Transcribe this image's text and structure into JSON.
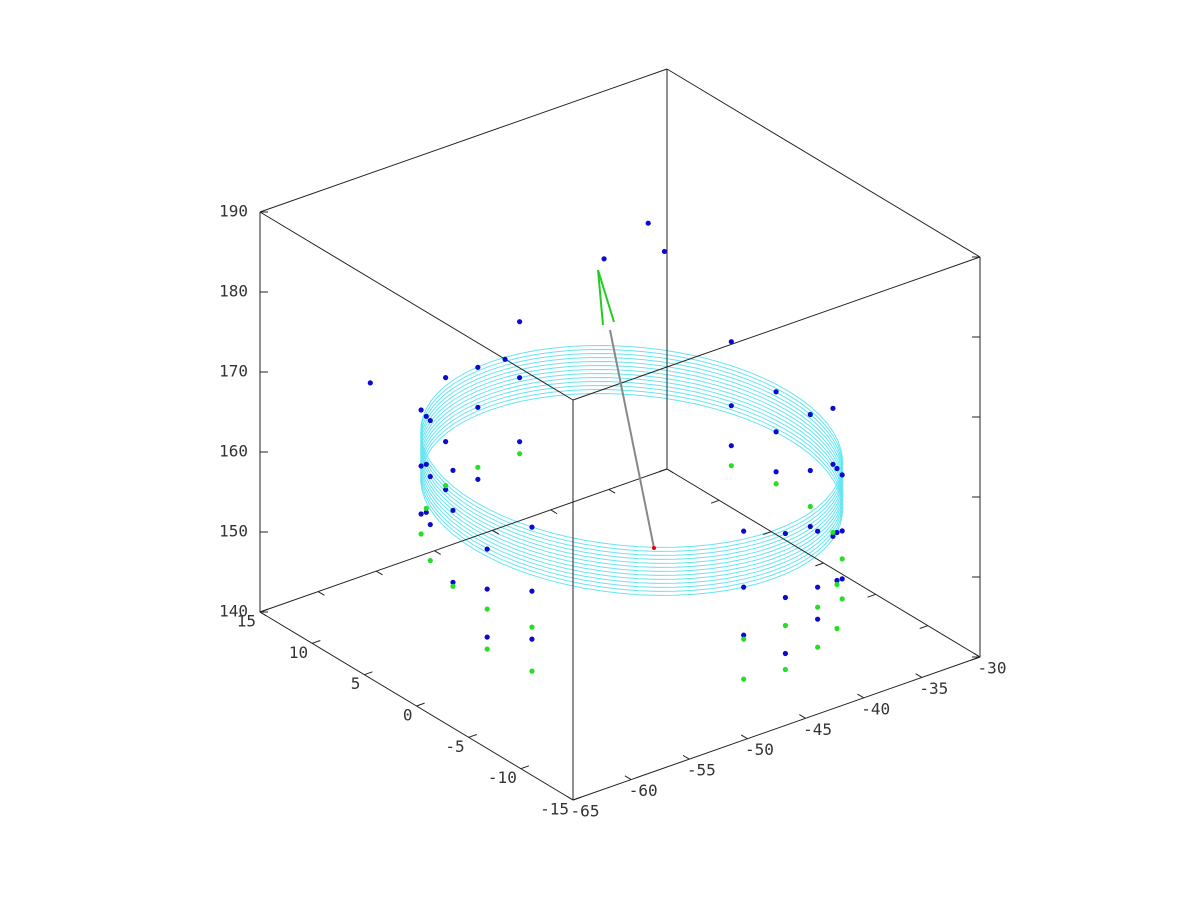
{
  "chart_data": {
    "type": "scatter3d",
    "xlim": [
      -65,
      -30
    ],
    "xticks": [
      -65,
      -60,
      -55,
      -50,
      -45,
      -40,
      -35,
      -30
    ],
    "ylim": [
      -15,
      15
    ],
    "yticks": [
      -15,
      -10,
      -5,
      0,
      5,
      10,
      15
    ],
    "zlim": [
      140,
      190
    ],
    "zticks": [
      140,
      150,
      160,
      170,
      180,
      190
    ],
    "cylinder": {
      "color": "#66e4f2",
      "center": [
        -46.5,
        0
      ],
      "radius": 13.5,
      "z": [
        157,
        157.5,
        158,
        158.5,
        159,
        159.5,
        160,
        160.5,
        161,
        161.5,
        162,
        162.5,
        163
      ]
    },
    "series": [
      {
        "color": "#0a0ad0",
        "x": [
          -44.2,
          -47.7,
          -51.1,
          -54.2,
          -56.8,
          -58.7,
          -59.8,
          -60.0,
          -59.2,
          -48.8,
          -45.3,
          -41.9,
          -38.8,
          -36.2,
          -34.3,
          -33.2,
          -33.0,
          -33.8,
          -44.2,
          -47.7,
          -51.1,
          -54.2,
          -56.8,
          -58.7,
          -59.8,
          -60.0,
          -59.2,
          -48.8,
          -45.3,
          -41.9,
          -38.8,
          -36.2,
          -34.3,
          -33.2,
          -33.0,
          -33.8,
          -44.2,
          -47.7,
          -51.1,
          -54.2,
          -56.8,
          -58.7,
          -59.8,
          -60.0,
          -59.2,
          -48.8,
          -45.3,
          -41.9,
          -38.8,
          -36.2,
          -34.3,
          -33.2,
          -33.0,
          -33.8,
          -37,
          -36.5,
          -39,
          -60,
          -52
        ],
        "y": [
          13.3,
          13.4,
          12.7,
          11.1,
          8.7,
          5.7,
          2.3,
          -1.2,
          -4.6,
          -13.3,
          -13.4,
          -12.7,
          -11.1,
          -8.7,
          -5.7,
          -2.3,
          1.2,
          4.6,
          13.3,
          13.4,
          12.7,
          11.1,
          8.7,
          5.7,
          2.3,
          -1.2,
          -4.6,
          -13.3,
          -13.4,
          -12.7,
          -11.1,
          -8.7,
          -5.7,
          -2.3,
          1.2,
          4.6,
          13.3,
          13.4,
          12.7,
          11.1,
          8.7,
          5.7,
          2.3,
          -1.2,
          -4.6,
          -13.3,
          -13.4,
          -12.7,
          -11.1,
          -8.7,
          -5.7,
          -2.3,
          1.2,
          4.6,
          9,
          8,
          11,
          10,
          6
        ],
        "z": [
          152,
          158,
          164,
          150,
          166,
          155,
          160,
          153,
          149,
          151,
          147,
          153,
          157,
          161,
          150,
          155,
          162,
          158,
          160,
          149,
          156,
          162,
          153,
          168,
          151,
          158,
          163,
          157,
          162,
          149,
          165,
          154,
          159,
          148,
          152,
          166,
          167,
          163,
          150,
          156,
          159,
          161,
          165,
          147,
          155,
          164,
          154,
          160,
          151,
          148,
          166,
          162,
          157,
          153,
          179,
          176,
          174,
          170,
          172
        ]
      },
      {
        "color": "#22e022",
        "x": [
          -44.2,
          -47.7,
          -51.1,
          -54.2,
          -56.8,
          -58.7,
          -59.8,
          -60.0,
          -59.2,
          -48.8,
          -45.3,
          -41.9,
          -38.8,
          -36.2,
          -34.3,
          -33.2,
          -33.0,
          -33.8,
          -60.0,
          -59.2,
          -48.8,
          -45.3,
          -41.9,
          -38.8,
          -36.2
        ],
        "y": [
          13.3,
          13.4,
          12.7,
          11.1,
          8.7,
          5.7,
          2.3,
          -1.2,
          -4.6,
          -13.3,
          -13.4,
          -12.7,
          -11.1,
          -8.7,
          -5.7,
          -2.3,
          1.2,
          4.6,
          -1.2,
          -4.6,
          -13.3,
          -13.4,
          -12.7,
          -11.1,
          -8.7
        ],
        "z": [
          150.5,
          150.5,
          150.5,
          150.5,
          150.5,
          150.5,
          150.5,
          150.5,
          150.5,
          150.5,
          150.5,
          150.5,
          150.5,
          150.5,
          150.5,
          150.5,
          150.5,
          150.5,
          145.5,
          145,
          145.5,
          145,
          145.5,
          145,
          145.5
        ]
      }
    ]
  }
}
